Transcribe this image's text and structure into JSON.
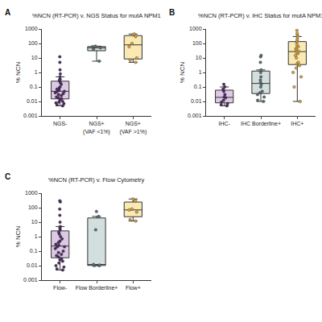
{
  "chart_data": [
    {
      "type": "box",
      "annotations": [
        "A"
      ],
      "title": "%NCN (RT-PCR) v. NGS Status for mutA NPM1",
      "ylabel": "% NCN",
      "categories": [
        "NGS-",
        "NGS+ (VAF <1%)",
        "NGS+ (VAF >1%)"
      ],
      "values": [
        [
          12,
          5,
          1.5,
          0.8,
          0.5,
          0.35,
          0.3,
          0.25,
          0.2,
          0.15,
          0.1,
          0.08,
          0.07,
          0.06,
          0.05,
          0.05,
          0.04,
          0.035,
          0.03,
          0.025,
          0.02,
          0.018,
          0.015,
          0.012,
          0.01,
          0.009,
          0.008,
          0.007,
          0.006,
          0.005
        ],
        [
          6,
          40,
          50,
          60,
          65
        ],
        [
          5,
          7,
          10,
          60,
          100,
          300,
          400,
          450
        ]
      ],
      "colors": [
        "#ddc9e4",
        "#d3dfde",
        "#fbe9b4"
      ],
      "log": "y",
      "ylim": [
        0.001,
        1000
      ],
      "yticks": [
        0.001,
        0.01,
        0.1,
        1,
        10,
        100,
        1000
      ],
      "grid": false
    },
    {
      "type": "box",
      "annotations": [
        "B"
      ],
      "title": "%NCN (RT-PCR) v. IHC Status for mutA NPM1",
      "ylabel": "% NCN",
      "categories": [
        "IHC-",
        "IHC Borderline+",
        "IHC+"
      ],
      "values": [
        [
          0.15,
          0.1,
          0.07,
          0.05,
          0.03,
          0.02,
          0.018,
          0.012,
          0.009,
          0.007,
          0.006,
          0.005
        ],
        [
          15,
          12,
          5,
          1.5,
          1,
          0.5,
          0.3,
          0.2,
          0.15,
          0.1,
          0.05,
          0.04,
          0.03,
          0.02,
          0.012,
          0.01
        ],
        [
          800,
          500,
          400,
          300,
          200,
          150,
          120,
          80,
          60,
          50,
          40,
          30,
          25,
          20,
          15,
          10,
          5,
          4,
          3,
          2,
          1,
          0.5,
          0.1,
          0.01
        ]
      ],
      "colors": [
        "#ddc9e4",
        "#d3dfde",
        "#fbe9b4"
      ],
      "log": "y",
      "ylim": [
        0.001,
        1000
      ],
      "yticks": [
        0.001,
        0.01,
        0.1,
        1,
        10,
        100,
        1000
      ],
      "grid": false
    },
    {
      "type": "box",
      "annotations": [
        "C"
      ],
      "title": "%NCN (RT-PCR) v. Flow Cytometry",
      "ylabel": "% NCN",
      "categories": [
        "Flow-",
        "Flow Borderline+",
        "Flow+"
      ],
      "values": [
        [
          300,
          250,
          80,
          30,
          10,
          5,
          4,
          3,
          2,
          1.5,
          1,
          0.7,
          0.5,
          0.4,
          0.3,
          0.25,
          0.2,
          0.2,
          0.15,
          0.1,
          0.08,
          0.06,
          0.05,
          0.04,
          0.03,
          0.025,
          0.02,
          0.015,
          0.01,
          0.008,
          0.006,
          0.005
        ],
        [
          55,
          25,
          3,
          0.012,
          0.011,
          0.01,
          0.01
        ],
        [
          400,
          300,
          80,
          70,
          50,
          15,
          12
        ]
      ],
      "colors": [
        "#ddc9e4",
        "#d3dfde",
        "#fbe9b4"
      ],
      "log": "y",
      "ylim": [
        0.001,
        1000
      ],
      "yticks": [
        0.001,
        0.01,
        0.1,
        1,
        10,
        100,
        1000
      ],
      "grid": false
    }
  ]
}
